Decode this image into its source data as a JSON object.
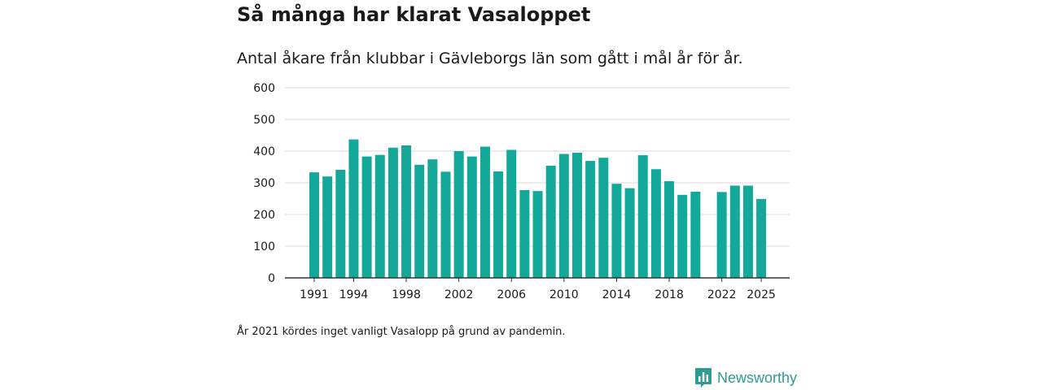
{
  "header": {
    "title": "Så många har klarat Vasaloppet",
    "subtitle": "Antal åkare från klubbar i Gävleborgs län som gått i mål år för år."
  },
  "footer": {
    "note": "År 2021 kördes inget vanligt Vasalopp på grund av pandemin.",
    "brand": "Newsworthy"
  },
  "colors": {
    "bar": "#13a89a",
    "grid": "#d9d9d9",
    "axis": "#333333",
    "brand": "#2e9c91"
  },
  "chart_data": {
    "type": "bar",
    "title": "Så många har klarat Vasaloppet",
    "xlabel": "",
    "ylabel": "",
    "ylim": [
      0,
      600
    ],
    "yticks": [
      0,
      100,
      200,
      300,
      400,
      500,
      600
    ],
    "grid": true,
    "xtick_labels": [
      "1991",
      "1994",
      "1998",
      "2002",
      "2006",
      "2010",
      "2014",
      "2018",
      "2022",
      "2025"
    ],
    "categories": [
      1991,
      1992,
      1993,
      1994,
      1995,
      1996,
      1997,
      1998,
      1999,
      2000,
      2001,
      2002,
      2003,
      2004,
      2005,
      2006,
      2007,
      2008,
      2009,
      2010,
      2011,
      2012,
      2013,
      2014,
      2015,
      2016,
      2017,
      2018,
      2019,
      2020,
      2021,
      2022,
      2023,
      2024,
      2025
    ],
    "values": [
      333,
      320,
      341,
      437,
      383,
      388,
      411,
      418,
      357,
      374,
      335,
      400,
      383,
      414,
      336,
      404,
      277,
      274,
      354,
      391,
      395,
      369,
      379,
      297,
      283,
      387,
      343,
      305,
      262,
      272,
      null,
      271,
      291,
      291,
      249
    ]
  }
}
